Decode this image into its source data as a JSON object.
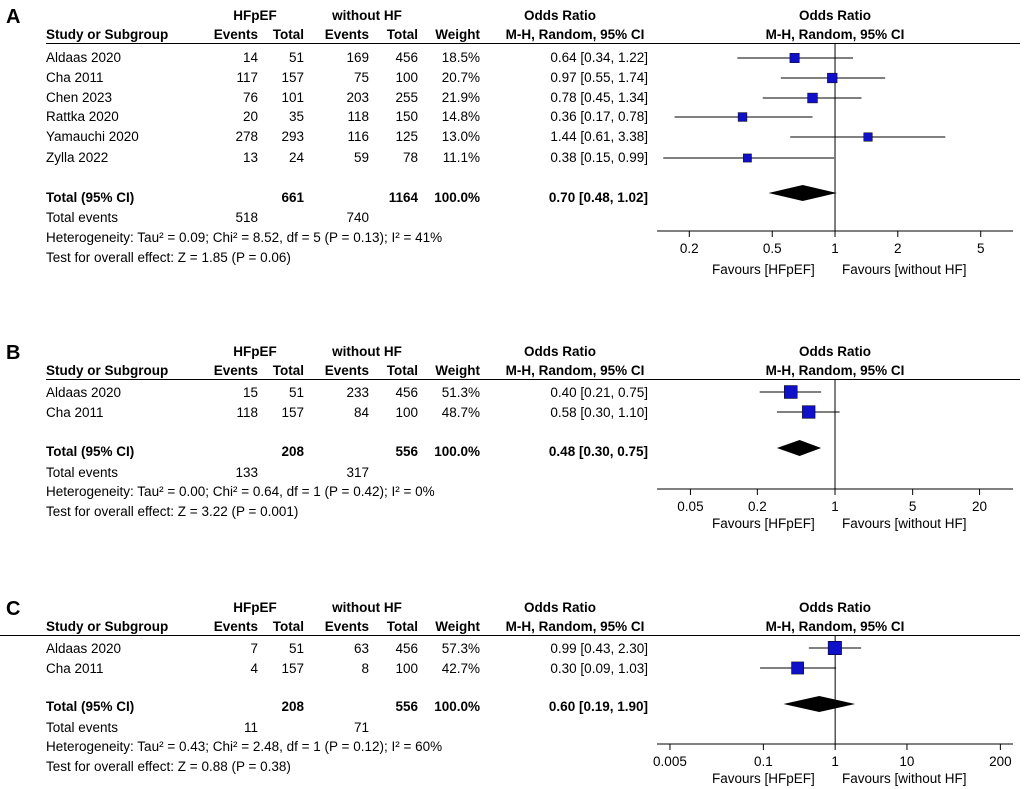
{
  "headers": {
    "group1": "HFpEF",
    "group2": "without HF",
    "or_title": "Odds Ratio",
    "study": "Study or Subgroup",
    "events": "Events",
    "total": "Total",
    "weight": "Weight",
    "method": "M-H, Random, 95% CI"
  },
  "chart_data": [
    {
      "type": "forest",
      "panel": "A",
      "studies": [
        {
          "name": "Aldaas 2020",
          "e1": "14",
          "t1": "51",
          "e2": "169",
          "t2": "456",
          "weight": "18.5%",
          "ci_text": "0.64 [0.34, 1.22]",
          "or": 0.64,
          "lo": 0.34,
          "hi": 1.22,
          "w": 18.5
        },
        {
          "name": "Cha 2011",
          "e1": "117",
          "t1": "157",
          "e2": "75",
          "t2": "100",
          "weight": "20.7%",
          "ci_text": "0.97 [0.55, 1.74]",
          "or": 0.97,
          "lo": 0.55,
          "hi": 1.74,
          "w": 20.7
        },
        {
          "name": "Chen 2023",
          "e1": "76",
          "t1": "101",
          "e2": "203",
          "t2": "255",
          "weight": "21.9%",
          "ci_text": "0.78 [0.45, 1.34]",
          "or": 0.78,
          "lo": 0.45,
          "hi": 1.34,
          "w": 21.9
        },
        {
          "name": "Rattka 2020",
          "e1": "20",
          "t1": "35",
          "e2": "118",
          "t2": "150",
          "weight": "14.8%",
          "ci_text": "0.36 [0.17, 0.78]",
          "or": 0.36,
          "lo": 0.17,
          "hi": 0.78,
          "w": 14.8
        },
        {
          "name": "Yamauchi 2020",
          "e1": "278",
          "t1": "293",
          "e2": "116",
          "t2": "125",
          "weight": "13.0%",
          "ci_text": "1.44 [0.61, 3.38]",
          "or": 1.44,
          "lo": 0.61,
          "hi": 3.38,
          "w": 13.0
        },
        {
          "name": "Zylla 2022",
          "e1": "13",
          "t1": "24",
          "e2": "59",
          "t2": "78",
          "weight": "11.1%",
          "ci_text": "0.38 [0.15, 0.99]",
          "or": 0.38,
          "lo": 0.15,
          "hi": 0.99,
          "w": 11.1
        }
      ],
      "total": {
        "label": "Total (95% CI)",
        "t1": "661",
        "t2": "1164",
        "weight": "100.0%",
        "ci_text": "0.70 [0.48, 1.02]",
        "or": 0.7,
        "lo": 0.48,
        "hi": 1.02
      },
      "events": {
        "label": "Total events",
        "e1": "518",
        "e2": "740"
      },
      "heterogeneity": "Heterogeneity: Tau² = 0.09; Chi² = 8.52, df = 5 (P = 0.13); I² = 41%",
      "overall": "Test for overall effect: Z = 1.85 (P = 0.06)",
      "axis": {
        "scale": "log",
        "xlim": [
          0.14,
          7.14
        ],
        "ticks": [
          0.2,
          0.5,
          1,
          2,
          5
        ],
        "tick_labels": [
          "0.2",
          "0.5",
          "1",
          "2",
          "5"
        ]
      },
      "favours_left": "Favours [HFpEF]",
      "favours_right": "Favours [without HF]"
    },
    {
      "type": "forest",
      "panel": "B",
      "studies": [
        {
          "name": "Aldaas 2020",
          "e1": "15",
          "t1": "51",
          "e2": "233",
          "t2": "456",
          "weight": "51.3%",
          "ci_text": "0.40 [0.21, 0.75]",
          "or": 0.4,
          "lo": 0.21,
          "hi": 0.75,
          "w": 51.3
        },
        {
          "name": "Cha 2011",
          "e1": "118",
          "t1": "157",
          "e2": "84",
          "t2": "100",
          "weight": "48.7%",
          "ci_text": "0.58 [0.30, 1.10]",
          "or": 0.58,
          "lo": 0.3,
          "hi": 1.1,
          "w": 48.7
        }
      ],
      "total": {
        "label": "Total (95% CI)",
        "t1": "208",
        "t2": "556",
        "weight": "100.0%",
        "ci_text": "0.48 [0.30, 0.75]",
        "or": 0.48,
        "lo": 0.3,
        "hi": 0.75
      },
      "events": {
        "label": "Total events",
        "e1": "133",
        "e2": "317"
      },
      "heterogeneity": "Heterogeneity: Tau² = 0.00; Chi² = 0.64, df = 1 (P = 0.42); I² = 0%",
      "overall": "Test for overall effect: Z = 3.22 (P = 0.001)",
      "axis": {
        "scale": "log",
        "xlim": [
          0.025,
          40
        ],
        "ticks": [
          0.05,
          0.2,
          1,
          5,
          20
        ],
        "tick_labels": [
          "0.05",
          "0.2",
          "1",
          "5",
          "20"
        ]
      },
      "favours_left": "Favours [HFpEF]",
      "favours_right": "Favours [without HF]"
    },
    {
      "type": "forest",
      "panel": "C",
      "studies": [
        {
          "name": "Aldaas 2020",
          "e1": "7",
          "t1": "51",
          "e2": "63",
          "t2": "456",
          "weight": "57.3%",
          "ci_text": "0.99 [0.43, 2.30]",
          "or": 0.99,
          "lo": 0.43,
          "hi": 2.3,
          "w": 57.3
        },
        {
          "name": "Cha 2011",
          "e1": "4",
          "t1": "157",
          "e2": "8",
          "t2": "100",
          "weight": "42.7%",
          "ci_text": "0.30 [0.09, 1.03]",
          "or": 0.3,
          "lo": 0.09,
          "hi": 1.03,
          "w": 42.7
        }
      ],
      "total": {
        "label": "Total (95% CI)",
        "t1": "208",
        "t2": "556",
        "weight": "100.0%",
        "ci_text": "0.60 [0.19, 1.90]",
        "or": 0.6,
        "lo": 0.19,
        "hi": 1.9
      },
      "events": {
        "label": "Total events",
        "e1": "11",
        "e2": "71"
      },
      "heterogeneity": "Heterogeneity: Tau² = 0.43; Chi² = 2.48, df = 1 (P = 0.12); I² = 60%",
      "overall": "Test for overall effect: Z = 0.88 (P = 0.38)",
      "axis": {
        "scale": "log",
        "xlim": [
          0.0033,
          300
        ],
        "ticks": [
          0.005,
          0.1,
          1,
          10,
          200
        ],
        "tick_labels": [
          "0.005",
          "0.1",
          "1",
          "10",
          "200"
        ]
      },
      "favours_left": "Favours [HFpEF]",
      "favours_right": "Favours [without HF]"
    }
  ],
  "colors": {
    "marker": "#1010c8",
    "diamond": "#000000",
    "line": "#000000"
  }
}
